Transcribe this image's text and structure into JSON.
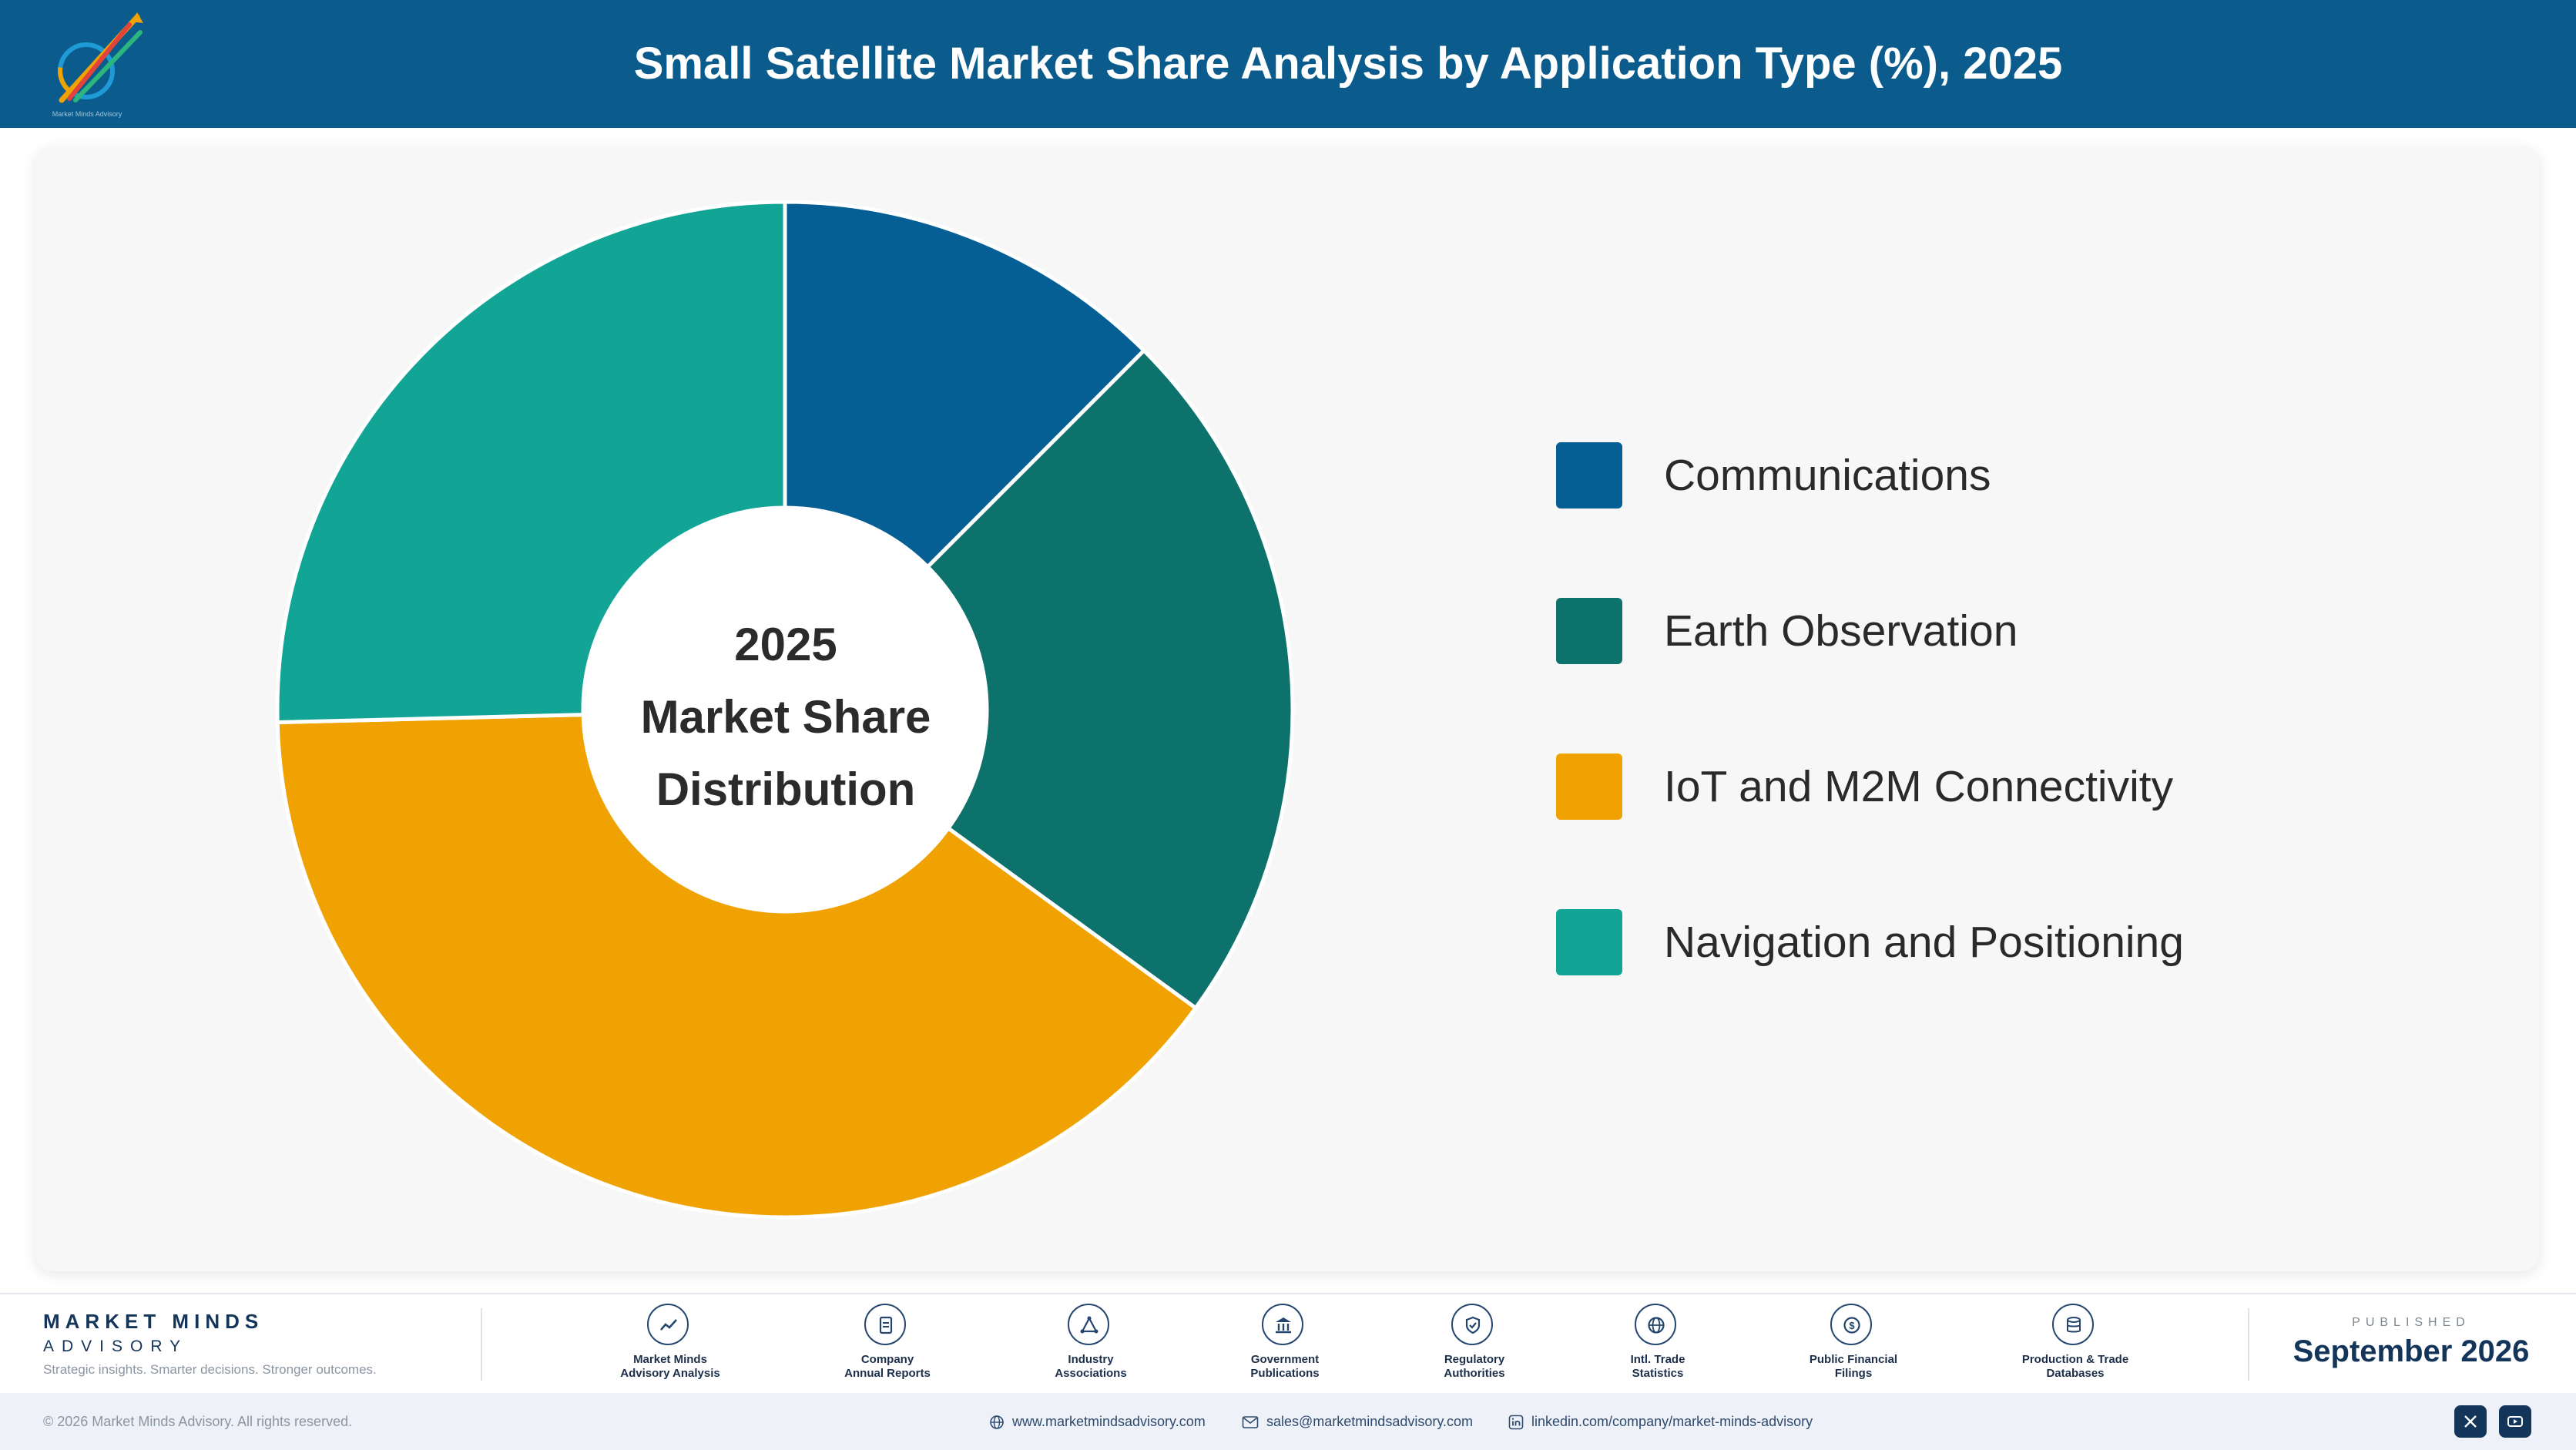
{
  "header": {
    "title": "Small Satellite Market Share Analysis by Application Type (%), 2025",
    "logo_caption": "Market Minds Advisory"
  },
  "chart_data": {
    "type": "pie",
    "variant": "donut",
    "title": "Small Satellite Market Share Analysis by Application Type (%), 2025",
    "center_label": [
      "2025",
      "Market Share",
      "Distribution"
    ],
    "categories": [
      "Communications",
      "Earth Observation",
      "IoT and M2M Connectivity",
      "Navigation and Positioning"
    ],
    "values": [
      12.5,
      22.5,
      39.6,
      25.4
    ],
    "colors": [
      "#065f94",
      "#0c726b",
      "#f0a202",
      "#12a596"
    ],
    "legend_position": "right"
  },
  "footer": {
    "brand_name": "MARKET MINDS",
    "brand_sub": "ADVISORY",
    "tagline": "Strategic insights. Smarter decisions. Stronger outcomes.",
    "sources": [
      {
        "line1": "Market Minds",
        "line2": "Advisory Analysis",
        "icon": "chart-line-icon"
      },
      {
        "line1": "Company",
        "line2": "Annual Reports",
        "icon": "document-icon"
      },
      {
        "line1": "Industry",
        "line2": "Associations",
        "icon": "network-icon"
      },
      {
        "line1": "Government",
        "line2": "Publications",
        "icon": "bank-icon"
      },
      {
        "line1": "Regulatory",
        "line2": "Authorities",
        "icon": "shield-icon"
      },
      {
        "line1": "Intl. Trade",
        "line2": "Statistics",
        "icon": "globe-icon"
      },
      {
        "line1": "Public Financial",
        "line2": "Filings",
        "icon": "coin-icon"
      },
      {
        "line1": "Production & Trade",
        "line2": "Databases",
        "icon": "database-icon"
      }
    ],
    "published_label": "PUBLISHED",
    "published_date": "September 2026"
  },
  "bottom": {
    "copyright": "© 2026 Market Minds Advisory. All rights reserved.",
    "website": "www.marketmindsadvisory.com",
    "email": "sales@marketmindsadvisory.com",
    "linkedin": "linkedin.com/company/market-minds-advisory"
  }
}
